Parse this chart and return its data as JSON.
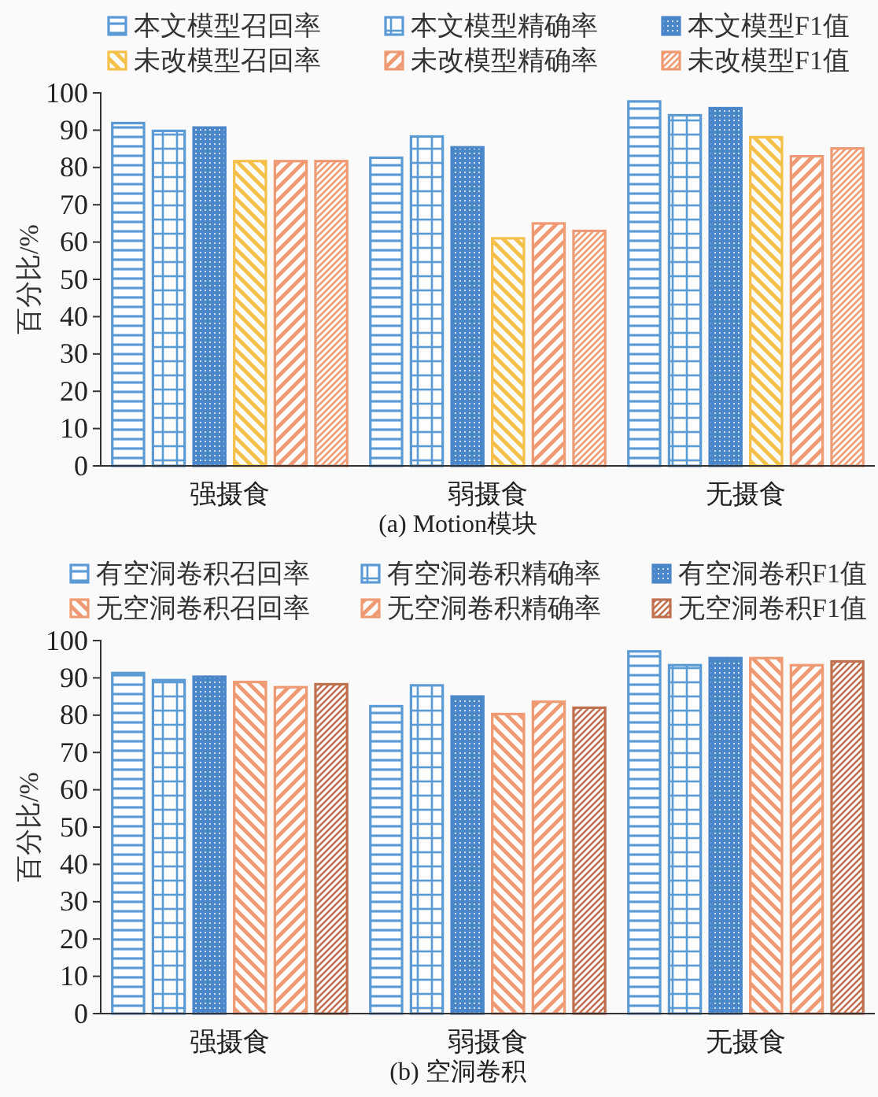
{
  "chart_data": [
    {
      "type": "bar",
      "title": "(a) Motion模块",
      "ylabel": "百分比/%",
      "categories": [
        "强摄食",
        "弱摄食",
        "无摄食"
      ],
      "ylim": [
        0,
        100
      ],
      "yticks": [
        0,
        10,
        20,
        30,
        40,
        50,
        60,
        70,
        80,
        90,
        100
      ],
      "legend": "top",
      "grid": false,
      "series": [
        {
          "name": "本文模型召回率",
          "color": "#5b9bd5",
          "values": [
            91.9,
            82.6,
            97.7
          ]
        },
        {
          "name": "本文模型精确率",
          "color": "#5b9bd5",
          "values": [
            89.8,
            88.3,
            94
          ]
        },
        {
          "name": "本文模型F1值",
          "color": "#4a86c8",
          "values": [
            90.7,
            85.4,
            95.9
          ]
        },
        {
          "name": "未改模型召回率",
          "color": "#f5c04a",
          "values": [
            81.7,
            61,
            88.1
          ]
        },
        {
          "name": "未改模型精确率",
          "color": "#ef9a72",
          "values": [
            81.7,
            65,
            83
          ]
        },
        {
          "name": "未改模型F1值",
          "color": "#ef9a72",
          "values": [
            81.7,
            63,
            85.1
          ]
        }
      ]
    },
    {
      "type": "bar",
      "title": "(b) 空洞卷积",
      "ylabel": "百分比/%",
      "categories": [
        "强摄食",
        "弱摄食",
        "无摄食"
      ],
      "ylim": [
        0,
        100
      ],
      "yticks": [
        0,
        10,
        20,
        30,
        40,
        50,
        60,
        70,
        80,
        90,
        100
      ],
      "legend": "top",
      "grid": false,
      "series": [
        {
          "name": "有空洞卷积召回率",
          "color": "#5b9bd5",
          "values": [
            91.3,
            82.4,
            97.1
          ]
        },
        {
          "name": "有空洞卷积精确率",
          "color": "#5b9bd5",
          "values": [
            89.4,
            88,
            93.4
          ]
        },
        {
          "name": "有空洞卷积F1值",
          "color": "#4a86c8",
          "values": [
            90.3,
            85,
            95.3
          ]
        },
        {
          "name": "无空洞卷积召回率",
          "color": "#ef9a72",
          "values": [
            88.9,
            80.3,
            95.3
          ]
        },
        {
          "name": "无空洞卷积精确率",
          "color": "#ef9a72",
          "values": [
            87.5,
            83.6,
            93.4
          ]
        },
        {
          "name": "无空洞卷积F1值",
          "color": "#c0704e",
          "values": [
            88.3,
            82,
            94.4
          ]
        }
      ]
    }
  ]
}
